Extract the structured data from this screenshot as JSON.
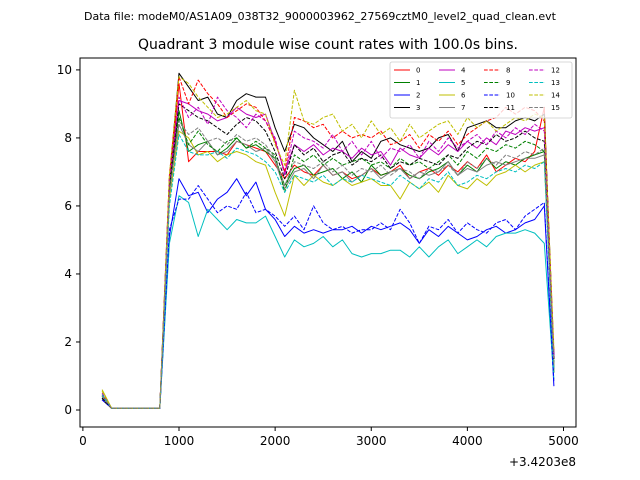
{
  "chart_data": {
    "type": "line",
    "suptitle": "Data file: modeM0/AS1A09_038T32_9000003962_27569cztM0_level2_quad_clean.evt",
    "title": "Quadrant 3 module wise count rates with 100.0s bins.",
    "xlabel": "",
    "ylabel": "",
    "x_offset_label": "+3.4203e8",
    "xlim": [
      -30,
      5130
    ],
    "ylim": [
      -0.5,
      10.35
    ],
    "xticks": [
      0,
      1000,
      2000,
      3000,
      4000,
      5000
    ],
    "yticks": [
      0,
      2,
      4,
      6,
      8,
      10
    ],
    "grid": false,
    "legend_position": "top-right",
    "legend_columns": 4,
    "x": [
      200,
      300,
      400,
      500,
      600,
      700,
      800,
      900,
      1000,
      1100,
      1200,
      1300,
      1400,
      1500,
      1600,
      1700,
      1800,
      1900,
      2000,
      2100,
      2200,
      2300,
      2400,
      2500,
      2600,
      2700,
      2800,
      2900,
      3000,
      3100,
      3200,
      3300,
      3400,
      3500,
      3600,
      3700,
      3800,
      3900,
      4000,
      4100,
      4200,
      4300,
      4400,
      4500,
      4600,
      4700,
      4800,
      4900
    ],
    "series": [
      {
        "name": "0",
        "color": "#ff0000",
        "dash": "solid",
        "values": [
          0.45,
          0.05,
          0.05,
          0.05,
          0.05,
          0.05,
          0.05,
          6.6,
          9.6,
          7.3,
          7.6,
          7.6,
          7.6,
          7.5,
          7.9,
          7.8,
          7.7,
          7.6,
          7.2,
          6.8,
          7.2,
          7.0,
          6.9,
          7.2,
          6.9,
          7.0,
          6.8,
          6.9,
          7.1,
          6.9,
          7.0,
          7.2,
          6.8,
          7.0,
          7.1,
          6.9,
          7.2,
          7.0,
          7.3,
          7.1,
          7.5,
          7.0,
          7.2,
          7.4,
          7.3,
          7.6,
          8.9,
          1.2
        ]
      },
      {
        "name": "1",
        "color": "#008000",
        "dash": "solid",
        "values": [
          0.4,
          0.05,
          0.05,
          0.05,
          0.05,
          0.05,
          0.05,
          6.4,
          8.8,
          7.6,
          7.8,
          7.9,
          7.5,
          7.7,
          8.0,
          7.7,
          7.8,
          7.6,
          7.4,
          6.6,
          7.1,
          7.2,
          6.9,
          7.0,
          7.1,
          6.8,
          7.0,
          6.7,
          7.2,
          6.9,
          7.0,
          7.1,
          6.9,
          6.8,
          7.0,
          7.1,
          7.3,
          6.9,
          7.2,
          7.0,
          7.4,
          7.1,
          7.3,
          7.2,
          7.4,
          7.5,
          7.6,
          1.1
        ]
      },
      {
        "name": "2",
        "color": "#0000ff",
        "dash": "solid",
        "values": [
          0.35,
          0.05,
          0.05,
          0.05,
          0.05,
          0.05,
          0.05,
          5.1,
          6.8,
          6.3,
          6.4,
          5.8,
          6.2,
          6.4,
          6.8,
          6.3,
          6.7,
          5.9,
          5.6,
          5.1,
          5.4,
          5.2,
          5.3,
          5.2,
          5.3,
          5.3,
          5.4,
          5.2,
          5.4,
          5.3,
          5.4,
          5.5,
          5.3,
          4.9,
          5.3,
          5.1,
          5.4,
          5.2,
          5.0,
          5.1,
          5.3,
          5.4,
          5.2,
          5.3,
          5.5,
          5.6,
          6.0,
          0.7
        ]
      },
      {
        "name": "3",
        "color": "#000000",
        "dash": "solid",
        "values": [
          0.3,
          0.05,
          0.05,
          0.05,
          0.05,
          0.05,
          0.05,
          6.8,
          9.9,
          9.5,
          9.1,
          9.2,
          8.7,
          8.6,
          9.1,
          9.3,
          9.2,
          9.2,
          8.3,
          7.6,
          8.4,
          8.3,
          8.0,
          7.8,
          7.6,
          7.9,
          7.3,
          7.6,
          7.4,
          7.9,
          8.0,
          7.8,
          7.7,
          7.6,
          7.7,
          8.0,
          8.1,
          7.6,
          8.3,
          8.4,
          8.5,
          8.3,
          8.3,
          8.5,
          8.6,
          8.5,
          8.7,
          1.6
        ]
      },
      {
        "name": "4",
        "color": "#bf00bf",
        "dash": "solid",
        "values": [
          0.4,
          0.05,
          0.05,
          0.05,
          0.05,
          0.05,
          0.05,
          6.4,
          9.1,
          9.0,
          8.8,
          8.7,
          8.5,
          8.6,
          8.9,
          8.7,
          8.6,
          8.7,
          7.9,
          7.0,
          7.8,
          7.6,
          7.8,
          7.5,
          7.7,
          7.6,
          7.4,
          7.7,
          7.5,
          7.6,
          7.2,
          7.7,
          7.5,
          7.4,
          7.7,
          7.5,
          7.8,
          7.6,
          7.9,
          7.7,
          8.0,
          7.8,
          8.2,
          8.1,
          8.3,
          8.2,
          8.3,
          1.5
        ]
      },
      {
        "name": "5",
        "color": "#00bfbf",
        "dash": "solid",
        "values": [
          0.4,
          0.05,
          0.05,
          0.05,
          0.05,
          0.05,
          0.05,
          4.9,
          6.3,
          6.1,
          5.1,
          5.9,
          5.6,
          5.3,
          5.6,
          5.5,
          5.5,
          5.7,
          5.1,
          4.5,
          5.0,
          4.8,
          4.9,
          5.1,
          4.8,
          5.0,
          4.6,
          4.5,
          4.6,
          4.6,
          4.7,
          4.7,
          4.5,
          4.8,
          4.5,
          4.8,
          5.0,
          4.6,
          4.8,
          5.0,
          4.8,
          5.1,
          5.2,
          5.2,
          5.3,
          5.2,
          4.9,
          0.9
        ]
      },
      {
        "name": "6",
        "color": "#bfbf00",
        "dash": "solid",
        "values": [
          0.6,
          0.05,
          0.05,
          0.05,
          0.05,
          0.05,
          0.05,
          6.2,
          8.2,
          8.0,
          7.5,
          7.6,
          7.3,
          7.5,
          7.6,
          7.5,
          7.3,
          7.2,
          6.4,
          5.7,
          6.9,
          6.6,
          6.9,
          6.7,
          6.6,
          6.8,
          6.6,
          6.7,
          6.8,
          6.6,
          6.6,
          6.2,
          6.7,
          6.5,
          6.7,
          6.4,
          6.9,
          6.6,
          6.5,
          6.8,
          6.6,
          6.9,
          7.0,
          7.2,
          7.0,
          7.2,
          7.3,
          1.3
        ]
      },
      {
        "name": "7",
        "color": "#808080",
        "dash": "solid",
        "values": [
          0.35,
          0.05,
          0.05,
          0.05,
          0.05,
          0.05,
          0.05,
          6.5,
          8.4,
          7.8,
          7.6,
          7.9,
          7.5,
          7.6,
          7.9,
          7.8,
          7.6,
          7.7,
          7.3,
          6.5,
          7.0,
          7.1,
          6.8,
          7.2,
          6.9,
          7.0,
          6.7,
          6.9,
          7.1,
          6.8,
          7.0,
          7.1,
          6.8,
          7.0,
          6.9,
          7.0,
          7.3,
          6.9,
          7.1,
          7.0,
          7.2,
          7.3,
          7.2,
          7.3,
          7.4,
          7.4,
          7.5,
          1.2
        ]
      },
      {
        "name": "8",
        "color": "#ff0000",
        "dash": "dashed",
        "values": [
          0.45,
          0.05,
          0.05,
          0.05,
          0.05,
          0.05,
          0.05,
          6.9,
          9.8,
          9.0,
          9.7,
          9.3,
          9.0,
          8.6,
          8.8,
          9.0,
          8.9,
          8.5,
          7.9,
          7.0,
          8.6,
          8.5,
          8.3,
          8.4,
          8.0,
          8.2,
          8.0,
          8.1,
          8.0,
          8.2,
          7.8,
          7.9,
          8.1,
          7.7,
          8.1,
          7.9,
          8.2,
          7.8,
          8.1,
          8.3,
          8.5,
          8.6,
          8.9,
          8.7,
          8.9,
          8.8,
          8.5,
          1.7
        ]
      },
      {
        "name": "9",
        "color": "#008000",
        "dash": "dashed",
        "values": [
          0.4,
          0.05,
          0.05,
          0.05,
          0.05,
          0.05,
          0.05,
          6.5,
          8.6,
          7.8,
          8.2,
          7.8,
          7.6,
          7.9,
          8.0,
          7.7,
          7.9,
          7.7,
          7.5,
          6.4,
          7.5,
          7.3,
          7.5,
          7.2,
          7.4,
          7.2,
          7.3,
          7.4,
          7.2,
          7.3,
          7.1,
          7.4,
          7.2,
          7.3,
          7.1,
          7.3,
          7.5,
          7.2,
          7.6,
          7.4,
          7.7,
          7.6,
          7.8,
          7.7,
          7.9,
          7.8,
          7.6,
          1.4
        ]
      },
      {
        "name": "10",
        "color": "#0000ff",
        "dash": "dashed",
        "values": [
          0.3,
          0.05,
          0.05,
          0.05,
          0.05,
          0.05,
          0.05,
          5.3,
          6.2,
          6.2,
          6.6,
          6.2,
          5.8,
          6.0,
          5.9,
          6.4,
          5.8,
          5.9,
          5.7,
          5.4,
          5.7,
          5.3,
          6.0,
          5.5,
          5.3,
          5.4,
          5.2,
          5.3,
          5.3,
          5.5,
          5.3,
          5.9,
          5.5,
          4.9,
          5.4,
          5.3,
          5.6,
          5.2,
          5.5,
          5.3,
          5.2,
          5.5,
          5.6,
          5.3,
          5.7,
          5.9,
          6.1,
          0.8
        ]
      },
      {
        "name": "11",
        "color": "#000000",
        "dash": "dashed",
        "values": [
          0.35,
          0.05,
          0.05,
          0.05,
          0.05,
          0.05,
          0.05,
          6.6,
          9.0,
          8.8,
          8.6,
          8.5,
          8.3,
          8.1,
          8.4,
          8.6,
          8.5,
          8.2,
          7.6,
          6.8,
          7.8,
          7.5,
          7.7,
          7.3,
          7.5,
          7.6,
          7.2,
          7.4,
          7.3,
          7.5,
          7.1,
          7.3,
          7.2,
          7.4,
          7.3,
          7.2,
          7.5,
          7.4,
          7.7,
          7.9,
          7.8,
          8.1,
          7.9,
          8.0,
          8.2,
          8.0,
          7.9,
          1.5
        ]
      },
      {
        "name": "12",
        "color": "#bf00bf",
        "dash": "dashed",
        "values": [
          0.5,
          0.05,
          0.05,
          0.05,
          0.05,
          0.05,
          0.05,
          6.7,
          9.2,
          8.6,
          8.9,
          8.4,
          9.2,
          8.8,
          8.6,
          8.3,
          8.7,
          8.5,
          8.0,
          6.9,
          8.2,
          8.0,
          7.9,
          7.7,
          8.1,
          7.6,
          7.9,
          7.5,
          7.9,
          7.4,
          7.7,
          7.6,
          7.8,
          7.4,
          7.9,
          7.6,
          8.0,
          7.7,
          7.9,
          8.1,
          7.8,
          8.2,
          8.0,
          8.3,
          8.1,
          8.4,
          8.2,
          1.6
        ]
      },
      {
        "name": "13",
        "color": "#00bfbf",
        "dash": "dashed",
        "values": [
          0.45,
          0.05,
          0.05,
          0.05,
          0.05,
          0.05,
          0.05,
          6.0,
          8.1,
          7.6,
          7.5,
          7.5,
          7.6,
          7.4,
          7.7,
          7.6,
          7.5,
          7.3,
          7.0,
          6.4,
          6.9,
          6.8,
          6.7,
          6.9,
          6.6,
          6.8,
          6.7,
          6.9,
          6.8,
          6.7,
          6.6,
          6.9,
          6.7,
          6.5,
          6.8,
          6.7,
          7.0,
          6.6,
          6.7,
          6.9,
          6.8,
          7.0,
          7.1,
          7.0,
          7.2,
          7.1,
          7.3,
          1.2
        ]
      },
      {
        "name": "14",
        "color": "#bfbf00",
        "dash": "dashed",
        "values": [
          0.55,
          0.05,
          0.05,
          0.05,
          0.05,
          0.05,
          0.05,
          6.9,
          9.8,
          9.6,
          9.2,
          8.9,
          8.6,
          8.7,
          8.9,
          9.1,
          8.8,
          8.7,
          7.8,
          7.2,
          9.4,
          8.5,
          8.4,
          8.6,
          8.7,
          8.2,
          8.4,
          8.0,
          8.5,
          8.1,
          8.3,
          7.9,
          8.4,
          8.0,
          8.2,
          8.4,
          8.5,
          8.1,
          8.6,
          8.3,
          8.5,
          8.2,
          8.4,
          8.6,
          8.5,
          8.7,
          8.6,
          1.8
        ]
      },
      {
        "name": "15",
        "color": "#808080",
        "dash": "dashed",
        "values": [
          0.4,
          0.05,
          0.05,
          0.05,
          0.05,
          0.05,
          0.05,
          6.3,
          8.5,
          8.1,
          8.3,
          7.9,
          8.0,
          7.8,
          8.1,
          7.9,
          8.0,
          7.8,
          7.4,
          6.6,
          7.3,
          7.2,
          7.1,
          7.3,
          7.0,
          7.2,
          6.9,
          7.1,
          7.0,
          7.2,
          6.9,
          7.1,
          7.0,
          6.8,
          7.1,
          7.0,
          7.2,
          6.9,
          7.3,
          7.1,
          7.4,
          7.2,
          7.5,
          7.4,
          7.6,
          7.5,
          7.7,
          1.3
        ]
      }
    ]
  }
}
